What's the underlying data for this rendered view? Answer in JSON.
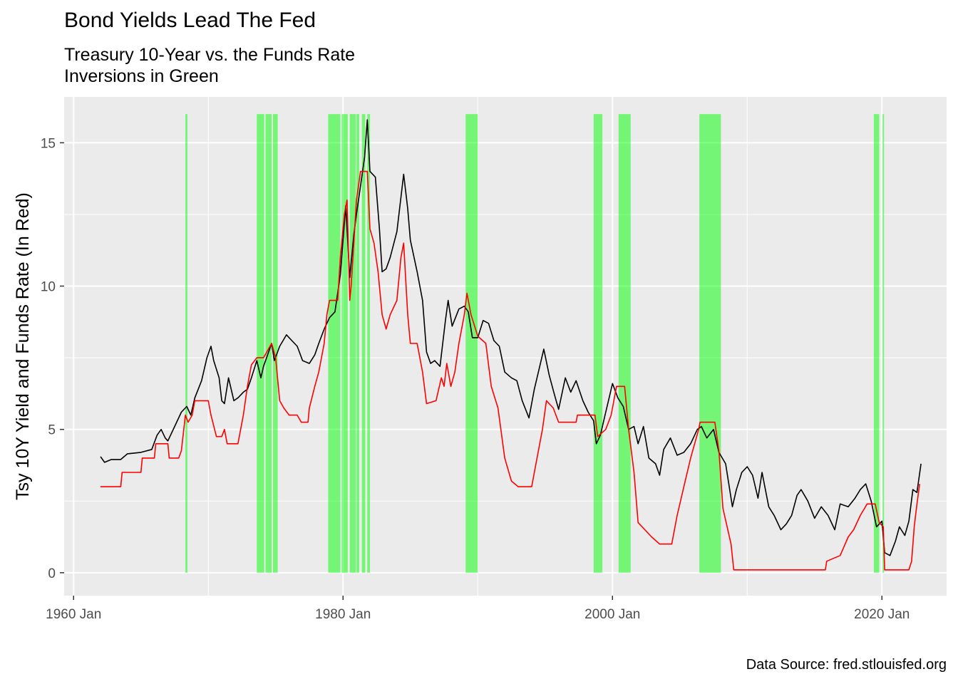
{
  "title": "Bond Yields Lead The Fed",
  "subtitle_line1": "Treasury 10-Year vs. the Funds Rate",
  "subtitle_line2": "Inversions in Green",
  "caption": "Data Source: fred.stlouisfed.org",
  "colors": {
    "panel": "#ebebeb",
    "grid": "#ffffff",
    "treasury": "#000000",
    "funds": "#ff0000",
    "inversion": "#00ff00"
  },
  "chart_data": {
    "type": "line",
    "ylabel": "Tsy 10Y Yield and Funds Rate (In Red)",
    "xlabel": "",
    "xlim": [
      1959.3,
      2024.8
    ],
    "ylim": [
      -0.8,
      16.6
    ],
    "x_ticks": [
      {
        "label": "1960 Jan",
        "value": 1960
      },
      {
        "label": "1980 Jan",
        "value": 1980
      },
      {
        "label": "2000 Jan",
        "value": 2000
      },
      {
        "label": "2020 Jan",
        "value": 2020
      }
    ],
    "y_ticks": [
      {
        "label": "0",
        "value": 0
      },
      {
        "label": "5",
        "value": 5
      },
      {
        "label": "10",
        "value": 10
      },
      {
        "label": "15",
        "value": 15
      }
    ],
    "inversions": [
      [
        1968.3,
        1968.45
      ],
      [
        1973.6,
        1974.15
      ],
      [
        1974.25,
        1974.7
      ],
      [
        1974.8,
        1975.15
      ],
      [
        1978.9,
        1979.8
      ],
      [
        1979.9,
        1980.35
      ],
      [
        1980.5,
        1980.95
      ],
      [
        1981.0,
        1981.2
      ],
      [
        1981.4,
        1981.65
      ],
      [
        1981.8,
        1982.0
      ],
      [
        1989.1,
        1990.0
      ],
      [
        1998.6,
        1999.25
      ],
      [
        2000.45,
        2001.35
      ],
      [
        2006.45,
        2008.05
      ],
      [
        2019.4,
        2019.8
      ],
      [
        2020.05,
        2020.15
      ]
    ],
    "series": [
      {
        "name": "Treasury 10-Year",
        "color": "#000000",
        "points": [
          [
            1962.0,
            4.05
          ],
          [
            1962.3,
            3.85
          ],
          [
            1962.8,
            3.95
          ],
          [
            1963.5,
            3.95
          ],
          [
            1964.0,
            4.15
          ],
          [
            1965.0,
            4.2
          ],
          [
            1965.8,
            4.3
          ],
          [
            1966.2,
            4.8
          ],
          [
            1966.5,
            5.0
          ],
          [
            1966.8,
            4.7
          ],
          [
            1967.0,
            4.6
          ],
          [
            1967.5,
            5.1
          ],
          [
            1968.0,
            5.6
          ],
          [
            1968.4,
            5.8
          ],
          [
            1968.7,
            5.5
          ],
          [
            1969.0,
            6.1
          ],
          [
            1969.5,
            6.7
          ],
          [
            1969.9,
            7.5
          ],
          [
            1970.2,
            7.9
          ],
          [
            1970.4,
            7.4
          ],
          [
            1970.8,
            6.8
          ],
          [
            1971.0,
            6.0
          ],
          [
            1971.2,
            5.9
          ],
          [
            1971.5,
            6.8
          ],
          [
            1971.9,
            6.0
          ],
          [
            1972.2,
            6.1
          ],
          [
            1972.6,
            6.3
          ],
          [
            1972.9,
            6.4
          ],
          [
            1973.2,
            6.8
          ],
          [
            1973.6,
            7.4
          ],
          [
            1973.9,
            6.8
          ],
          [
            1974.1,
            7.2
          ],
          [
            1974.4,
            7.6
          ],
          [
            1974.7,
            8.0
          ],
          [
            1974.9,
            7.4
          ],
          [
            1975.3,
            7.9
          ],
          [
            1975.8,
            8.3
          ],
          [
            1976.2,
            8.1
          ],
          [
            1976.6,
            7.9
          ],
          [
            1977.0,
            7.4
          ],
          [
            1977.5,
            7.3
          ],
          [
            1977.9,
            7.6
          ],
          [
            1978.2,
            8.0
          ],
          [
            1978.6,
            8.5
          ],
          [
            1979.0,
            8.9
          ],
          [
            1979.4,
            9.1
          ],
          [
            1979.8,
            10.4
          ],
          [
            1980.2,
            12.8
          ],
          [
            1980.5,
            10.3
          ],
          [
            1980.8,
            11.8
          ],
          [
            1981.0,
            12.5
          ],
          [
            1981.3,
            13.5
          ],
          [
            1981.6,
            14.5
          ],
          [
            1981.8,
            15.8
          ],
          [
            1982.0,
            14.0
          ],
          [
            1982.4,
            13.8
          ],
          [
            1982.7,
            12.0
          ],
          [
            1982.9,
            10.5
          ],
          [
            1983.2,
            10.6
          ],
          [
            1983.5,
            11.0
          ],
          [
            1984.0,
            11.9
          ],
          [
            1984.4,
            13.5
          ],
          [
            1984.5,
            13.9
          ],
          [
            1984.8,
            12.7
          ],
          [
            1985.0,
            11.6
          ],
          [
            1985.5,
            10.5
          ],
          [
            1985.9,
            9.5
          ],
          [
            1986.2,
            7.7
          ],
          [
            1986.5,
            7.3
          ],
          [
            1986.8,
            7.4
          ],
          [
            1987.2,
            7.2
          ],
          [
            1987.6,
            8.8
          ],
          [
            1987.8,
            9.5
          ],
          [
            1988.1,
            8.6
          ],
          [
            1988.6,
            9.2
          ],
          [
            1989.0,
            9.3
          ],
          [
            1989.3,
            9.1
          ],
          [
            1989.6,
            8.2
          ],
          [
            1990.0,
            8.2
          ],
          [
            1990.4,
            8.8
          ],
          [
            1990.8,
            8.7
          ],
          [
            1991.2,
            8.1
          ],
          [
            1991.6,
            7.9
          ],
          [
            1992.0,
            7.0
          ],
          [
            1992.5,
            6.8
          ],
          [
            1992.9,
            6.7
          ],
          [
            1993.3,
            6.0
          ],
          [
            1993.8,
            5.4
          ],
          [
            1994.2,
            6.4
          ],
          [
            1994.6,
            7.2
          ],
          [
            1994.9,
            7.8
          ],
          [
            1995.3,
            6.9
          ],
          [
            1995.7,
            6.2
          ],
          [
            1996.0,
            5.7
          ],
          [
            1996.5,
            6.8
          ],
          [
            1996.9,
            6.3
          ],
          [
            1997.3,
            6.7
          ],
          [
            1997.8,
            6.0
          ],
          [
            1998.2,
            5.6
          ],
          [
            1998.6,
            5.3
          ],
          [
            1998.8,
            4.5
          ],
          [
            1999.1,
            4.8
          ],
          [
            1999.5,
            5.6
          ],
          [
            2000.0,
            6.6
          ],
          [
            2000.4,
            6.1
          ],
          [
            2000.8,
            5.8
          ],
          [
            2001.2,
            5.0
          ],
          [
            2001.6,
            5.1
          ],
          [
            2001.9,
            4.5
          ],
          [
            2002.3,
            5.1
          ],
          [
            2002.7,
            4.0
          ],
          [
            2003.2,
            3.8
          ],
          [
            2003.5,
            3.4
          ],
          [
            2003.8,
            4.3
          ],
          [
            2004.3,
            4.7
          ],
          [
            2004.8,
            4.1
          ],
          [
            2005.3,
            4.2
          ],
          [
            2005.8,
            4.5
          ],
          [
            2006.3,
            5.0
          ],
          [
            2006.6,
            5.1
          ],
          [
            2007.0,
            4.7
          ],
          [
            2007.5,
            5.0
          ],
          [
            2007.9,
            4.2
          ],
          [
            2008.4,
            3.8
          ],
          [
            2008.9,
            2.3
          ],
          [
            2009.2,
            2.9
          ],
          [
            2009.6,
            3.5
          ],
          [
            2010.0,
            3.7
          ],
          [
            2010.4,
            3.4
          ],
          [
            2010.8,
            2.6
          ],
          [
            2011.1,
            3.5
          ],
          [
            2011.6,
            2.3
          ],
          [
            2012.0,
            2.0
          ],
          [
            2012.5,
            1.5
          ],
          [
            2012.9,
            1.7
          ],
          [
            2013.3,
            2.0
          ],
          [
            2013.7,
            2.7
          ],
          [
            2014.0,
            2.9
          ],
          [
            2014.5,
            2.5
          ],
          [
            2015.0,
            1.9
          ],
          [
            2015.5,
            2.3
          ],
          [
            2016.0,
            2.0
          ],
          [
            2016.5,
            1.5
          ],
          [
            2016.9,
            2.4
          ],
          [
            2017.5,
            2.3
          ],
          [
            2018.0,
            2.6
          ],
          [
            2018.4,
            2.9
          ],
          [
            2018.8,
            3.1
          ],
          [
            2019.2,
            2.5
          ],
          [
            2019.6,
            1.6
          ],
          [
            2020.0,
            1.8
          ],
          [
            2020.2,
            0.7
          ],
          [
            2020.6,
            0.6
          ],
          [
            2021.0,
            1.1
          ],
          [
            2021.3,
            1.6
          ],
          [
            2021.7,
            1.3
          ],
          [
            2022.0,
            1.8
          ],
          [
            2022.3,
            2.9
          ],
          [
            2022.6,
            2.8
          ],
          [
            2022.9,
            3.8
          ]
        ]
      },
      {
        "name": "Funds Rate",
        "color": "#ff0000",
        "points": [
          [
            1962.0,
            3.0
          ],
          [
            1963.5,
            3.0
          ],
          [
            1963.6,
            3.5
          ],
          [
            1965.0,
            3.5
          ],
          [
            1965.1,
            4.0
          ],
          [
            1966.0,
            4.0
          ],
          [
            1966.1,
            4.5
          ],
          [
            1967.0,
            4.5
          ],
          [
            1967.1,
            4.0
          ],
          [
            1967.8,
            4.0
          ],
          [
            1968.0,
            4.25
          ],
          [
            1968.3,
            5.5
          ],
          [
            1968.5,
            5.25
          ],
          [
            1968.8,
            5.5
          ],
          [
            1969.0,
            6.0
          ],
          [
            1970.0,
            6.0
          ],
          [
            1970.2,
            5.5
          ],
          [
            1970.6,
            4.75
          ],
          [
            1971.0,
            4.75
          ],
          [
            1971.2,
            5.0
          ],
          [
            1971.4,
            4.5
          ],
          [
            1972.2,
            4.5
          ],
          [
            1972.4,
            5.0
          ],
          [
            1972.6,
            5.5
          ],
          [
            1972.9,
            6.5
          ],
          [
            1973.2,
            7.25
          ],
          [
            1973.6,
            7.5
          ],
          [
            1974.1,
            7.5
          ],
          [
            1974.4,
            7.75
          ],
          [
            1974.7,
            8.0
          ],
          [
            1975.0,
            7.5
          ],
          [
            1975.3,
            6.0
          ],
          [
            1975.6,
            5.75
          ],
          [
            1976.0,
            5.5
          ],
          [
            1976.6,
            5.5
          ],
          [
            1976.9,
            5.25
          ],
          [
            1977.4,
            5.25
          ],
          [
            1977.5,
            5.75
          ],
          [
            1977.9,
            6.5
          ],
          [
            1978.2,
            7.0
          ],
          [
            1978.6,
            8.0
          ],
          [
            1978.8,
            9.0
          ],
          [
            1979.0,
            9.5
          ],
          [
            1979.6,
            9.5
          ],
          [
            1979.8,
            11.0
          ],
          [
            1980.1,
            12.5
          ],
          [
            1980.3,
            13.0
          ],
          [
            1980.5,
            9.5
          ],
          [
            1980.6,
            10.0
          ],
          [
            1980.8,
            11.5
          ],
          [
            1981.0,
            13.0
          ],
          [
            1981.3,
            14.0
          ],
          [
            1981.8,
            14.0
          ],
          [
            1982.0,
            12.0
          ],
          [
            1982.3,
            11.5
          ],
          [
            1982.6,
            10.5
          ],
          [
            1982.9,
            9.0
          ],
          [
            1983.2,
            8.5
          ],
          [
            1983.5,
            9.0
          ],
          [
            1984.0,
            9.5
          ],
          [
            1984.3,
            11.0
          ],
          [
            1984.5,
            11.5
          ],
          [
            1984.8,
            9.0
          ],
          [
            1985.0,
            8.0
          ],
          [
            1985.5,
            8.0
          ],
          [
            1985.9,
            7.0
          ],
          [
            1986.2,
            5.9
          ],
          [
            1986.9,
            6.0
          ],
          [
            1987.3,
            6.8
          ],
          [
            1987.5,
            6.5
          ],
          [
            1987.7,
            7.3
          ],
          [
            1988.0,
            6.5
          ],
          [
            1988.3,
            7.0
          ],
          [
            1988.6,
            8.0
          ],
          [
            1989.0,
            9.0
          ],
          [
            1989.2,
            9.75
          ],
          [
            1989.5,
            9.0
          ],
          [
            1990.0,
            8.25
          ],
          [
            1990.6,
            8.0
          ],
          [
            1991.0,
            6.5
          ],
          [
            1991.5,
            5.75
          ],
          [
            1992.0,
            4.0
          ],
          [
            1992.5,
            3.2
          ],
          [
            1993.0,
            3.0
          ],
          [
            1994.0,
            3.0
          ],
          [
            1994.4,
            4.0
          ],
          [
            1994.8,
            5.0
          ],
          [
            1995.1,
            6.0
          ],
          [
            1995.6,
            5.75
          ],
          [
            1996.0,
            5.25
          ],
          [
            1997.3,
            5.25
          ],
          [
            1997.4,
            5.5
          ],
          [
            1998.7,
            5.5
          ],
          [
            1998.9,
            4.75
          ],
          [
            1999.5,
            5.0
          ],
          [
            1999.9,
            5.5
          ],
          [
            2000.3,
            6.5
          ],
          [
            2000.9,
            6.5
          ],
          [
            2001.2,
            5.0
          ],
          [
            2001.6,
            3.5
          ],
          [
            2001.9,
            1.75
          ],
          [
            2002.9,
            1.25
          ],
          [
            2003.5,
            1.0
          ],
          [
            2004.4,
            1.0
          ],
          [
            2004.8,
            2.0
          ],
          [
            2005.3,
            3.0
          ],
          [
            2005.8,
            4.0
          ],
          [
            2006.4,
            5.0
          ],
          [
            2006.5,
            5.25
          ],
          [
            2007.6,
            5.25
          ],
          [
            2007.9,
            4.25
          ],
          [
            2008.2,
            2.25
          ],
          [
            2008.8,
            1.0
          ],
          [
            2009.0,
            0.1
          ],
          [
            2015.8,
            0.1
          ],
          [
            2015.9,
            0.4
          ],
          [
            2016.9,
            0.6
          ],
          [
            2017.5,
            1.25
          ],
          [
            2017.9,
            1.5
          ],
          [
            2018.4,
            2.0
          ],
          [
            2018.9,
            2.4
          ],
          [
            2019.5,
            2.4
          ],
          [
            2019.8,
            1.75
          ],
          [
            2020.1,
            1.6
          ],
          [
            2020.2,
            0.1
          ],
          [
            2022.0,
            0.1
          ],
          [
            2022.2,
            0.4
          ],
          [
            2022.4,
            1.6
          ],
          [
            2022.6,
            2.4
          ],
          [
            2022.8,
            3.1
          ]
        ]
      }
    ]
  }
}
